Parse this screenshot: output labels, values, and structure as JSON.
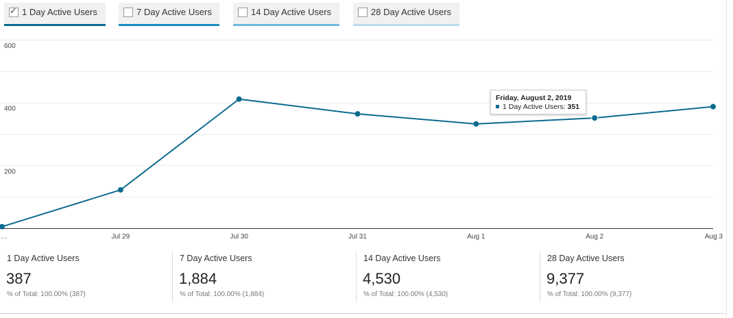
{
  "toggles": [
    {
      "label": "1 Day Active Users",
      "checked": true,
      "color": "#0b6a8f"
    },
    {
      "label": "7 Day Active Users",
      "checked": false,
      "color": "#1a8cc2"
    },
    {
      "label": "14 Day Active Users",
      "checked": false,
      "color": "#6fb8dc"
    },
    {
      "label": "28 Day Active Users",
      "checked": false,
      "color": "#b7dcee"
    }
  ],
  "check_glyph": "✓",
  "chart_data": {
    "type": "line",
    "x": [
      "…",
      "Jul 29",
      "Jul 30",
      "Jul 31",
      "Aug 1",
      "Aug 2",
      "Aug 3"
    ],
    "y_ticks": [
      200,
      400,
      600
    ],
    "ylim": [
      0,
      600
    ],
    "grid": true,
    "series": [
      {
        "name": "1 Day Active Users",
        "color": "#0b6a8f",
        "values": [
          5,
          122,
          411,
          364,
          332,
          351,
          387
        ]
      }
    ],
    "highlighted_index": 5
  },
  "tooltip": {
    "title": "Friday, August 2, 2019",
    "series_label": "1 Day Active Users:",
    "value": "351"
  },
  "summaries": [
    {
      "label": "1 Day Active Users",
      "value": "387",
      "pct": "% of Total: 100.00% (387)"
    },
    {
      "label": "7 Day Active Users",
      "value": "1,884",
      "pct": "% of Total: 100.00% (1,884)"
    },
    {
      "label": "14 Day Active Users",
      "value": "4,530",
      "pct": "% of Total: 100.00% (4,530)"
    },
    {
      "label": "28 Day Active Users",
      "value": "9,377",
      "pct": "% of Total: 100.00% (9,377)"
    }
  ]
}
